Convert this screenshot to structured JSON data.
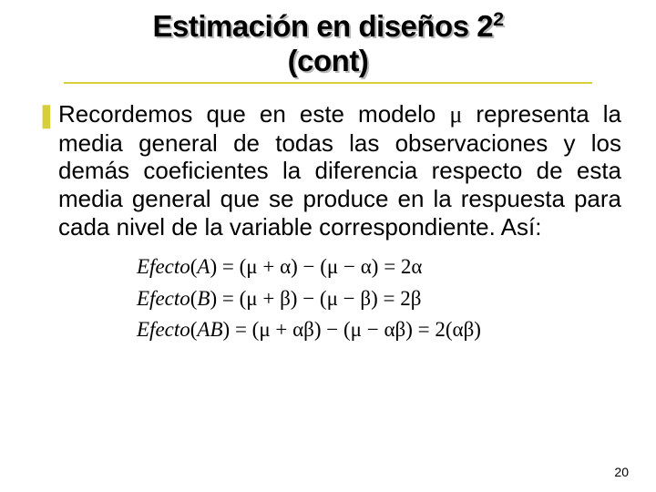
{
  "title": {
    "line1_a": "Estimación en diseños 2",
    "line1_sup": "2",
    "line2": "(cont)"
  },
  "body": {
    "bullet_glyph": "❚",
    "text_1": "Recordemos que en este modelo ",
    "mu": "μ",
    "text_2": " representa la media general de todas las observaciones y los demás coeficientes la diferencia respecto de esta media general que se produce en la respuesta para cada nivel de la variable correspondiente.  Así:"
  },
  "equations": {
    "eq1_lhs_label": "Efecto",
    "eq1_lhs_arg": "A",
    "eq1_rhs_plain": "= (μ + α) −  (μ − α) = 2α",
    "eq2_lhs_label": "Efecto",
    "eq2_lhs_arg": "B",
    "eq2_rhs_plain": "= (μ + β) −  (μ − β) = 2β",
    "eq3_lhs_label": "Efecto",
    "eq3_lhs_arg": "AB",
    "eq3_rhs_plain": "= (μ + αβ) −  (μ − αβ) = 2(αβ)"
  },
  "page_number": "20",
  "colors": {
    "accent": "#d6cf3a",
    "text": "#000000",
    "background": "#ffffff",
    "title_shadow": "#b8b8b8"
  },
  "fonts": {
    "body_family": "Verdana, Arial, sans-serif",
    "math_family": "Times New Roman, serif",
    "title_size_pt": 25,
    "body_size_pt": 20,
    "equation_size_pt": 17,
    "pagenum_size_pt": 11
  }
}
